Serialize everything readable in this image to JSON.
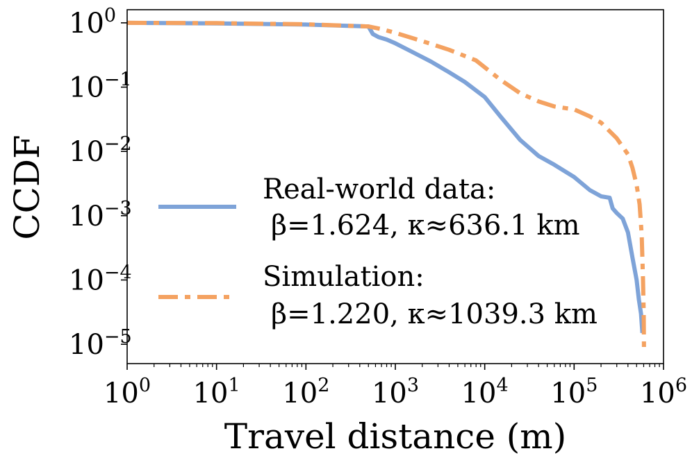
{
  "chart_data": {
    "type": "line",
    "title": "",
    "xlabel": "Travel distance (m)",
    "ylabel": "CCDF",
    "xscale": "log",
    "yscale": "log",
    "xlim": [
      1,
      1000000
    ],
    "ylim": [
      5e-06,
      1.6
    ],
    "x_ticks": [
      {
        "value": 1,
        "base": "10",
        "exp": "0"
      },
      {
        "value": 10,
        "base": "10",
        "exp": "1"
      },
      {
        "value": 100,
        "base": "10",
        "exp": "2"
      },
      {
        "value": 1000,
        "base": "10",
        "exp": "3"
      },
      {
        "value": 10000,
        "base": "10",
        "exp": "4"
      },
      {
        "value": 100000,
        "base": "10",
        "exp": "5"
      },
      {
        "value": 1000000,
        "base": "10",
        "exp": "6"
      }
    ],
    "y_ticks": [
      {
        "value": 1,
        "base": "10",
        "exp": "0"
      },
      {
        "value": 0.1,
        "base": "10",
        "exp": "−1"
      },
      {
        "value": 0.01,
        "base": "10",
        "exp": "−2"
      },
      {
        "value": 0.001,
        "base": "10",
        "exp": "−3"
      },
      {
        "value": 0.0001,
        "base": "10",
        "exp": "−4"
      },
      {
        "value": 1e-05,
        "base": "10",
        "exp": "−5"
      }
    ],
    "legend_position": "center",
    "series": [
      {
        "name": "Real-world data:",
        "params": "β=1.624, κ≈636.1 km",
        "color": "#7ea3d8",
        "dash": "solid",
        "x": [
          1,
          10,
          100,
          500,
          520,
          560,
          650,
          800,
          1000,
          1500,
          2500,
          4000,
          6000,
          10000,
          15000,
          25000,
          40000,
          60000,
          100000,
          150000,
          200000,
          250000,
          270000,
          300000,
          350000,
          400000,
          450000,
          500000,
          530000,
          560000,
          580000
        ],
        "y": [
          1.0,
          0.98,
          0.94,
          0.88,
          0.8,
          0.67,
          0.6,
          0.55,
          0.48,
          0.36,
          0.25,
          0.17,
          0.12,
          0.07,
          0.035,
          0.015,
          0.0085,
          0.0062,
          0.004,
          0.0025,
          0.002,
          0.0019,
          0.0013,
          0.0011,
          0.0009,
          0.00055,
          0.00022,
          0.0001,
          5e-05,
          3e-05,
          1.5e-05
        ]
      },
      {
        "name": "Simulation:",
        "params": "β=1.220, κ≈1039.3 km",
        "color": "#f4a261",
        "dash": "dashdot",
        "x": [
          1,
          10,
          100,
          500,
          700,
          1000,
          2000,
          4000,
          8000,
          15000,
          25000,
          40000,
          60000,
          100000,
          150000,
          200000,
          300000,
          400000,
          450000,
          500000,
          540000,
          570000,
          590000,
          600000,
          605000
        ],
        "y": [
          1.0,
          0.99,
          0.95,
          0.88,
          0.8,
          0.7,
          0.52,
          0.38,
          0.26,
          0.13,
          0.08,
          0.06,
          0.05,
          0.045,
          0.035,
          0.028,
          0.016,
          0.009,
          0.0055,
          0.003,
          0.0015,
          0.0005,
          0.0001,
          3e-05,
          8e-06
        ]
      }
    ]
  }
}
